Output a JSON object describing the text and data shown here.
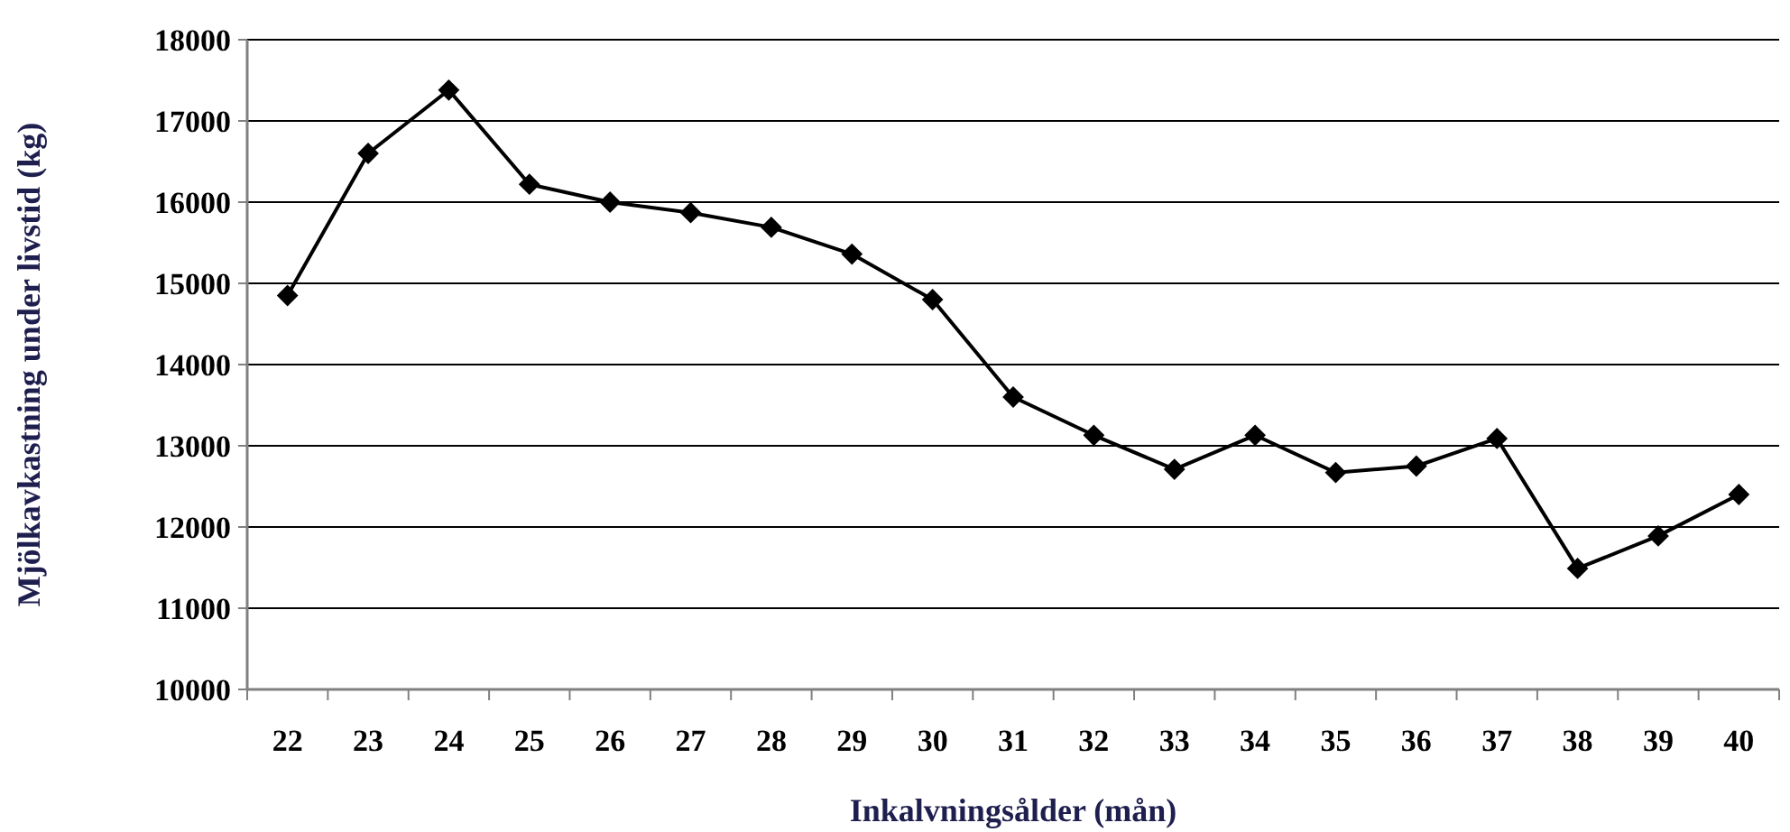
{
  "chart_data": {
    "type": "line",
    "xlabel": "Inkalvningsålder (mån)",
    "ylabel": "Mjölkavkastning under livstid (kg)",
    "categories": [
      "22",
      "23",
      "24",
      "25",
      "26",
      "27",
      "28",
      "29",
      "30",
      "31",
      "32",
      "33",
      "34",
      "35",
      "36",
      "37",
      "38",
      "39",
      "40"
    ],
    "series": [
      {
        "color": "#000000",
        "values": [
          14850,
          16600,
          17380,
          16220,
          16000,
          15870,
          15690,
          15360,
          14800,
          13600,
          13130,
          12710,
          13130,
          12670,
          12750,
          13090,
          11490,
          11890,
          12400
        ]
      }
    ],
    "ylim": [
      10000,
      18000
    ],
    "yticks": [
      10000,
      11000,
      12000,
      13000,
      14000,
      15000,
      16000,
      17000,
      18000
    ],
    "grid": "y",
    "marker": "diamond",
    "line_style": "solid"
  }
}
